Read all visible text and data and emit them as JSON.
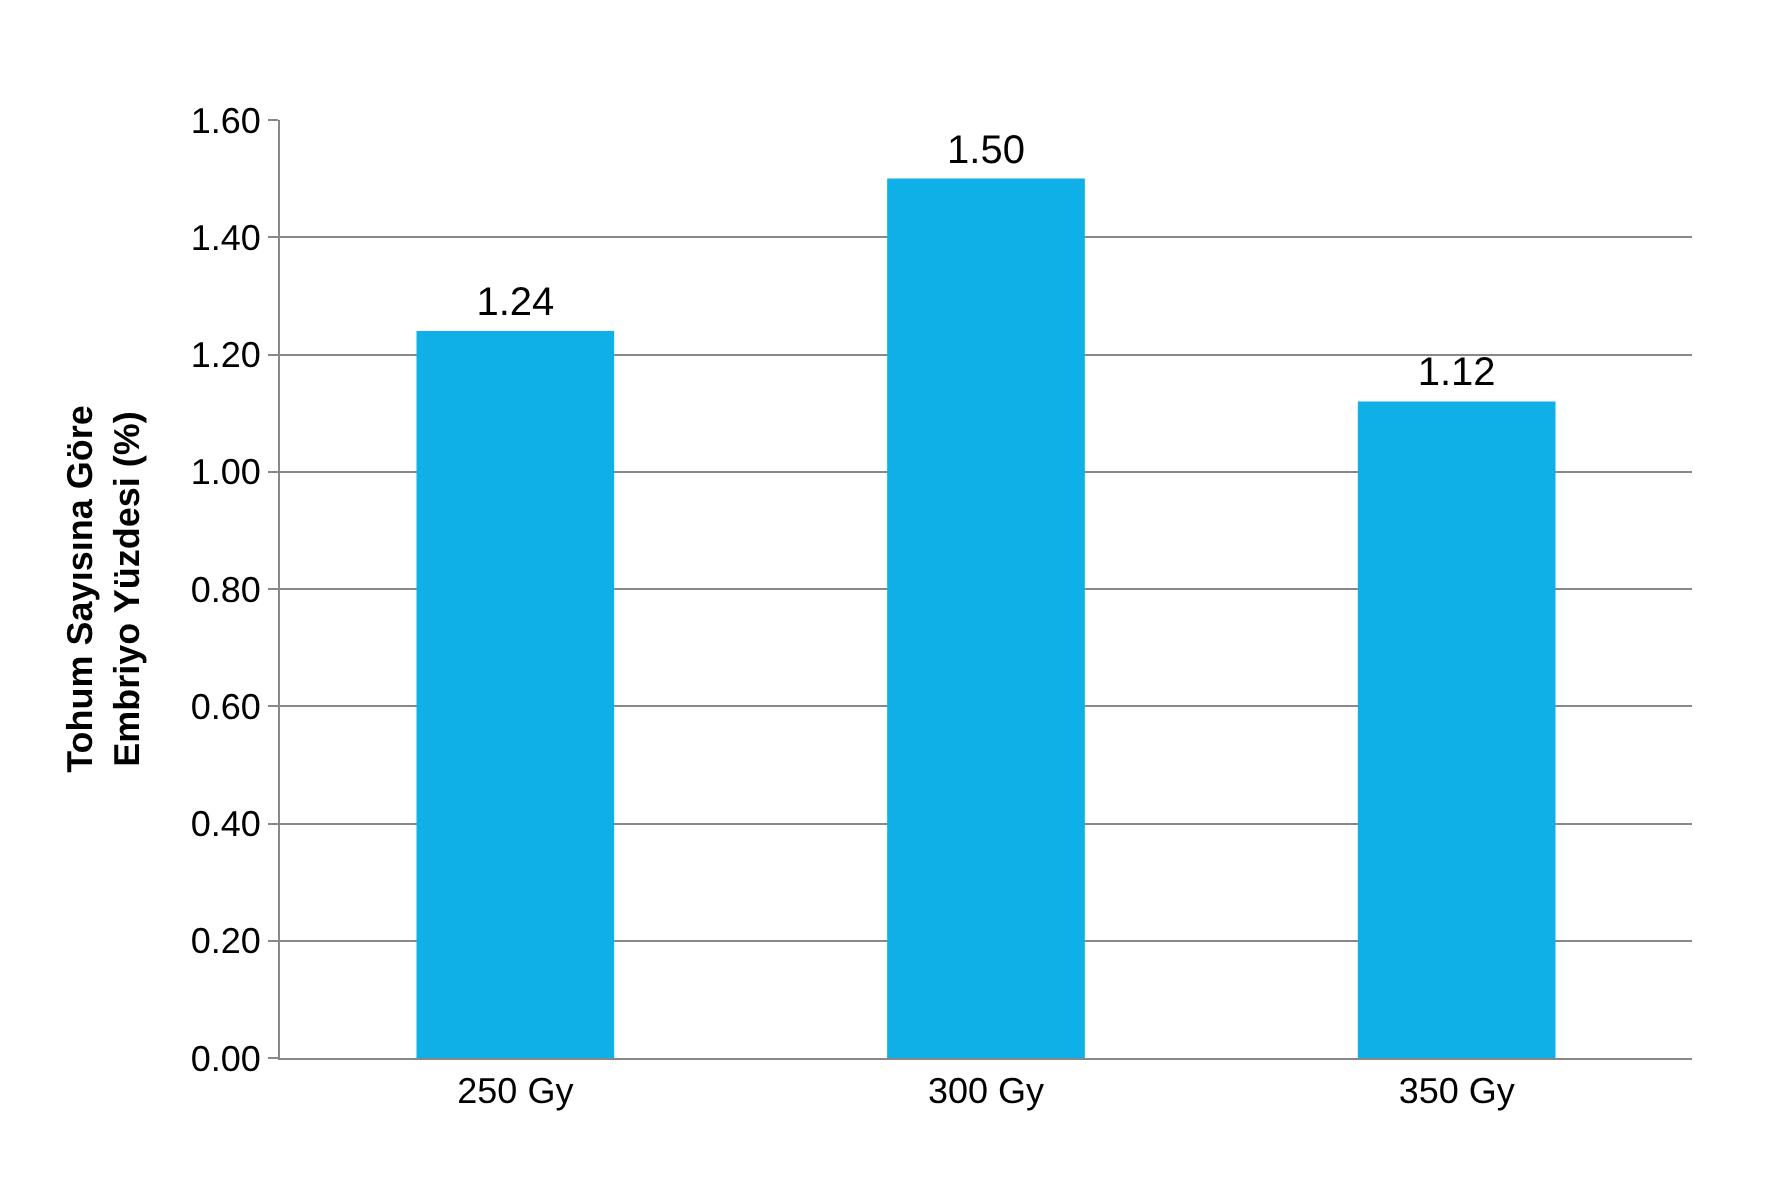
{
  "chart_data": {
    "type": "bar",
    "ylabel": "Tohum Sayısına Göre\nEmbriyo Yüzdesi (%)",
    "categories": [
      "250 Gy",
      "300 Gy",
      "350 Gy"
    ],
    "values": [
      1.24,
      1.5,
      1.12
    ],
    "color": "#0fb0e8",
    "ylim": [
      0,
      1.6
    ],
    "yticks": [
      {
        "value": 0,
        "label": "0.00"
      },
      {
        "value": 0.2,
        "label": "0.20"
      },
      {
        "value": 0.4,
        "label": "0.40"
      },
      {
        "value": 0.6,
        "label": "0.60"
      },
      {
        "value": 0.8,
        "label": "0.80"
      },
      {
        "value": 1,
        "label": "1.00"
      },
      {
        "value": 1.2,
        "label": "1.20"
      },
      {
        "value": 1.4,
        "label": "1.40"
      },
      {
        "value": 1.6,
        "label": "1.60"
      }
    ],
    "value_labels": [
      "1.24",
      "1.50",
      "1.12"
    ],
    "grid": "y"
  }
}
